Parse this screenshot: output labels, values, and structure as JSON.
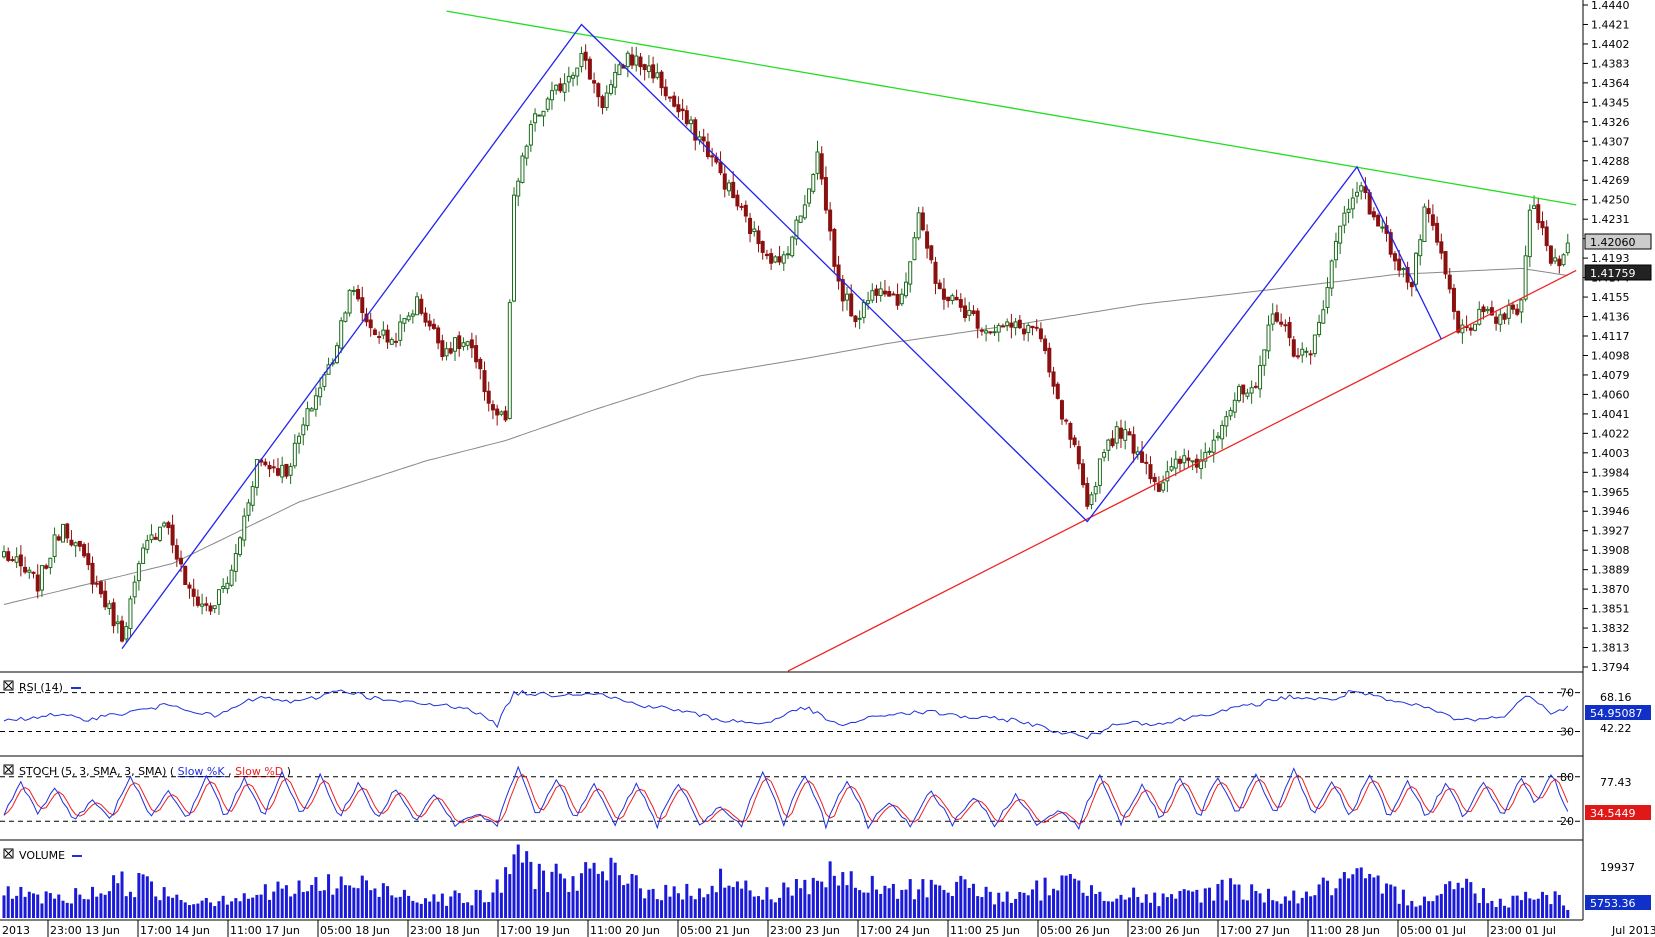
{
  "colors": {
    "background": "#ffffff",
    "candle_up": "#1d6b1d",
    "candle_down": "#8b1010",
    "zigzag": "#2222ee",
    "resistance": "#22dd22",
    "support": "#ee2222",
    "moving_average": "#888888",
    "rsi_line": "#2030dd",
    "stoch_k": "#2030dd",
    "stoch_d": "#ee2020",
    "volume_bar": "#1a1ad8",
    "price_box_fill": "#cccccc",
    "last_box_fill": "#222222",
    "rsi_box_fill": "#1030c8",
    "stoch_box_fill": "#e01818",
    "vol_box_fill": "#1030c8"
  },
  "chart_data": [
    {
      "panel": "price",
      "type": "candlestick",
      "xlabel": "",
      "ylabel": "",
      "ylim": [
        1.3794,
        1.444
      ],
      "y_tick_labels": [
        "1.4440",
        "1.4421",
        "1.4402",
        "1.4383",
        "1.4364",
        "1.4345",
        "1.4326",
        "1.4307",
        "1.4288",
        "1.4269",
        "1.4250",
        "1.4231",
        "1.4212",
        "1.4193",
        "1.4174",
        "1.4155",
        "1.4136",
        "1.4117",
        "1.4098",
        "1.4079",
        "1.4060",
        "1.4041",
        "1.4022",
        "1.4003",
        "1.3984",
        "1.3965",
        "1.3946",
        "1.3927",
        "1.3908",
        "1.3889",
        "1.3870",
        "1.3851",
        "1.3832",
        "1.3813",
        "1.3794"
      ],
      "current_price_label": "1.42060",
      "moving_average_label": "1.41759",
      "current_price": 1.4206,
      "moving_average_value": 1.41759,
      "x_tick_labels": [
        "2013",
        "23:00 13 Jun",
        "17:00 14 Jun",
        "11:00 17 Jun",
        "05:00 18 Jun",
        "23:00 18 Jun",
        "17:00 19 Jun",
        "11:00 20 Jun",
        "05:00 21 Jun",
        "23:00 23 Jun",
        "17:00 24 Jun",
        "11:00 25 Jun",
        "05:00 26 Jun",
        "23:00 26 Jun",
        "17:00 27 Jun",
        "11:00 28 Jun",
        "05:00 01 Jul",
        "23:00 01 Jul",
        "Jul 2013"
      ],
      "zigzag_points": [
        {
          "candle": 0,
          "price": 1.3812
        },
        {
          "candle": 1,
          "price": 1.4421
        },
        {
          "candle": 2,
          "price": 1.3936
        },
        {
          "candle": 3,
          "price": 1.4282
        },
        {
          "candle": 4,
          "price": 1.4114
        }
      ],
      "zigzag_candle_index": [
        28,
        137,
        257,
        321,
        341
      ],
      "resistance_line": {
        "start": {
          "candle": 105,
          "price": 1.4434
        },
        "end": {
          "candle": 373,
          "price": 1.4245
        }
      },
      "support_line": {
        "start": {
          "candle": 186,
          "price": 1.379
        },
        "end": {
          "candle": 373,
          "price": 1.4181
        }
      },
      "ohlc_anchors": [
        {
          "candle": 0,
          "price": 1.3905
        },
        {
          "candle": 8,
          "price": 1.3875
        },
        {
          "candle": 14,
          "price": 1.3935
        },
        {
          "candle": 20,
          "price": 1.389
        },
        {
          "candle": 28,
          "price": 1.3825
        },
        {
          "candle": 33,
          "price": 1.3905
        },
        {
          "candle": 38,
          "price": 1.394
        },
        {
          "candle": 44,
          "price": 1.3865
        },
        {
          "candle": 49,
          "price": 1.385
        },
        {
          "candle": 54,
          "price": 1.3885
        },
        {
          "candle": 60,
          "price": 1.3995
        },
        {
          "candle": 67,
          "price": 1.3985
        },
        {
          "candle": 73,
          "price": 1.405
        },
        {
          "candle": 78,
          "price": 1.4095
        },
        {
          "candle": 82,
          "price": 1.4165
        },
        {
          "candle": 87,
          "price": 1.4125
        },
        {
          "candle": 92,
          "price": 1.4112
        },
        {
          "candle": 98,
          "price": 1.415
        },
        {
          "candle": 104,
          "price": 1.4105
        },
        {
          "candle": 110,
          "price": 1.411
        },
        {
          "candle": 116,
          "price": 1.4045
        },
        {
          "candle": 119,
          "price": 1.4035
        },
        {
          "candle": 121,
          "price": 1.425
        },
        {
          "candle": 125,
          "price": 1.4322
        },
        {
          "candle": 130,
          "price": 1.435
        },
        {
          "candle": 137,
          "price": 1.439
        },
        {
          "candle": 142,
          "price": 1.4345
        },
        {
          "candle": 148,
          "price": 1.439
        },
        {
          "candle": 154,
          "price": 1.4375
        },
        {
          "candle": 160,
          "price": 1.4335
        },
        {
          "candle": 166,
          "price": 1.4305
        },
        {
          "candle": 172,
          "price": 1.426
        },
        {
          "candle": 178,
          "price": 1.4215
        },
        {
          "candle": 184,
          "price": 1.4185
        },
        {
          "candle": 189,
          "price": 1.4235
        },
        {
          "candle": 193,
          "price": 1.4295
        },
        {
          "candle": 198,
          "price": 1.4165
        },
        {
          "candle": 202,
          "price": 1.4135
        },
        {
          "candle": 208,
          "price": 1.417
        },
        {
          "candle": 213,
          "price": 1.415
        },
        {
          "candle": 217,
          "price": 1.424
        },
        {
          "candle": 221,
          "price": 1.4165
        },
        {
          "candle": 227,
          "price": 1.4145
        },
        {
          "candle": 233,
          "price": 1.4125
        },
        {
          "candle": 240,
          "price": 1.4125
        },
        {
          "candle": 245,
          "price": 1.4125
        },
        {
          "candle": 250,
          "price": 1.405
        },
        {
          "candle": 254,
          "price": 1.4005
        },
        {
          "candle": 257,
          "price": 1.3945
        },
        {
          "candle": 261,
          "price": 1.401
        },
        {
          "candle": 265,
          "price": 1.4025
        },
        {
          "candle": 270,
          "price": 1.4
        },
        {
          "candle": 274,
          "price": 1.397
        },
        {
          "candle": 279,
          "price": 1.3995
        },
        {
          "candle": 284,
          "price": 1.3995
        },
        {
          "candle": 289,
          "price": 1.4035
        },
        {
          "candle": 293,
          "price": 1.406
        },
        {
          "candle": 297,
          "price": 1.406
        },
        {
          "candle": 301,
          "price": 1.4145
        },
        {
          "candle": 306,
          "price": 1.4105
        },
        {
          "candle": 310,
          "price": 1.4095
        },
        {
          "candle": 313,
          "price": 1.415
        },
        {
          "candle": 317,
          "price": 1.4225
        },
        {
          "candle": 321,
          "price": 1.4265
        },
        {
          "candle": 325,
          "price": 1.4235
        },
        {
          "candle": 330,
          "price": 1.4195
        },
        {
          "candle": 334,
          "price": 1.4165
        },
        {
          "candle": 337,
          "price": 1.424
        },
        {
          "candle": 341,
          "price": 1.4195
        },
        {
          "candle": 345,
          "price": 1.412
        },
        {
          "candle": 350,
          "price": 1.4135
        },
        {
          "candle": 355,
          "price": 1.4135
        },
        {
          "candle": 360,
          "price": 1.4145
        },
        {
          "candle": 362,
          "price": 1.4245
        },
        {
          "candle": 365,
          "price": 1.423
        },
        {
          "candle": 367,
          "price": 1.4185
        },
        {
          "candle": 370,
          "price": 1.4195
        },
        {
          "candle": 371,
          "price": 1.4206
        }
      ],
      "ma_points": [
        {
          "candle": 0,
          "price": 1.3855
        },
        {
          "candle": 40,
          "price": 1.3895
        },
        {
          "candle": 70,
          "price": 1.3955
        },
        {
          "candle": 100,
          "price": 1.3995
        },
        {
          "candle": 119,
          "price": 1.4015
        },
        {
          "candle": 140,
          "price": 1.4045
        },
        {
          "candle": 165,
          "price": 1.4078
        },
        {
          "candle": 190,
          "price": 1.4095
        },
        {
          "candle": 210,
          "price": 1.411
        },
        {
          "candle": 240,
          "price": 1.4128
        },
        {
          "candle": 270,
          "price": 1.4148
        },
        {
          "candle": 300,
          "price": 1.4162
        },
        {
          "candle": 330,
          "price": 1.4177
        },
        {
          "candle": 360,
          "price": 1.4183
        },
        {
          "candle": 371,
          "price": 1.4176
        }
      ]
    },
    {
      "panel": "rsi",
      "type": "line",
      "title": "RSI (14)",
      "ylim": [
        10,
        85
      ],
      "level_upper": 70,
      "level_lower": 30,
      "level_upper_label": "70",
      "level_lower_label": "30",
      "right_labels": [
        "68.16",
        "42.22"
      ],
      "current_value_label": "54.95087",
      "current_value": 54.95087,
      "anchors": [
        {
          "candle": 0,
          "value": 40
        },
        {
          "candle": 10,
          "value": 47
        },
        {
          "candle": 20,
          "value": 43
        },
        {
          "candle": 30,
          "value": 50
        },
        {
          "candle": 40,
          "value": 58
        },
        {
          "candle": 50,
          "value": 45
        },
        {
          "candle": 60,
          "value": 65
        },
        {
          "candle": 70,
          "value": 60
        },
        {
          "candle": 80,
          "value": 73
        },
        {
          "candle": 90,
          "value": 62
        },
        {
          "candle": 100,
          "value": 58
        },
        {
          "candle": 110,
          "value": 55
        },
        {
          "candle": 117,
          "value": 37
        },
        {
          "candle": 121,
          "value": 70
        },
        {
          "candle": 130,
          "value": 68
        },
        {
          "candle": 140,
          "value": 70
        },
        {
          "candle": 150,
          "value": 58
        },
        {
          "candle": 160,
          "value": 52
        },
        {
          "candle": 170,
          "value": 42
        },
        {
          "candle": 180,
          "value": 38
        },
        {
          "candle": 190,
          "value": 55
        },
        {
          "candle": 198,
          "value": 36
        },
        {
          "candle": 210,
          "value": 48
        },
        {
          "candle": 220,
          "value": 50
        },
        {
          "candle": 230,
          "value": 44
        },
        {
          "candle": 240,
          "value": 42
        },
        {
          "candle": 250,
          "value": 30
        },
        {
          "candle": 257,
          "value": 24
        },
        {
          "candle": 265,
          "value": 40
        },
        {
          "candle": 275,
          "value": 38
        },
        {
          "candle": 285,
          "value": 48
        },
        {
          "candle": 295,
          "value": 56
        },
        {
          "candle": 305,
          "value": 66
        },
        {
          "candle": 315,
          "value": 62
        },
        {
          "candle": 320,
          "value": 72
        },
        {
          "candle": 328,
          "value": 62
        },
        {
          "candle": 338,
          "value": 54
        },
        {
          "candle": 345,
          "value": 42
        },
        {
          "candle": 355,
          "value": 44
        },
        {
          "candle": 362,
          "value": 68
        },
        {
          "candle": 367,
          "value": 50
        },
        {
          "candle": 371,
          "value": 54.95
        }
      ]
    },
    {
      "panel": "stochastic",
      "type": "line",
      "title": "STOCH (5, 3, SMA, 3, SMA)",
      "series_labels": [
        "Slow %K",
        "Slow %D"
      ],
      "ylim": [
        0,
        100
      ],
      "level_upper": 80,
      "level_lower": 20,
      "level_upper_label": "80",
      "level_lower_label": "20",
      "right_labels": [
        "77.43"
      ],
      "current_value_label": "34.5449",
      "current_value": 34.5449,
      "cycle_centres": [
        4,
        12,
        21,
        30,
        39,
        48,
        57,
        66,
        75,
        84,
        93,
        102,
        112,
        122,
        131,
        140,
        150,
        160,
        170,
        180,
        190,
        200,
        210,
        220,
        230,
        240,
        250,
        260,
        270,
        279,
        288,
        297,
        306,
        315,
        324,
        333,
        342,
        351,
        360,
        367
      ],
      "cycle_peaks": [
        72,
        65,
        48,
        82,
        60,
        80,
        78,
        86,
        82,
        70,
        65,
        55,
        30,
        92,
        75,
        70,
        70,
        72,
        40,
        85,
        82,
        75,
        46,
        60,
        52,
        55,
        35,
        80,
        68,
        78,
        80,
        85,
        90,
        74,
        84,
        74,
        70,
        72,
        80,
        85
      ]
    },
    {
      "panel": "volume",
      "type": "bar",
      "title": "VOLUME",
      "ylim": [
        0,
        33000
      ],
      "right_labels": [
        "19937"
      ],
      "current_value_label": "5753.36",
      "current_value": 5753.36,
      "volume_anchors": [
        {
          "candle": 0,
          "value": 11000
        },
        {
          "candle": 15,
          "value": 9000
        },
        {
          "candle": 30,
          "value": 17000
        },
        {
          "candle": 45,
          "value": 8000
        },
        {
          "candle": 60,
          "value": 11000
        },
        {
          "candle": 80,
          "value": 16000
        },
        {
          "candle": 100,
          "value": 10000
        },
        {
          "candle": 115,
          "value": 9000
        },
        {
          "candle": 121,
          "value": 25000
        },
        {
          "candle": 135,
          "value": 17000
        },
        {
          "candle": 142,
          "value": 21000
        },
        {
          "candle": 160,
          "value": 10000
        },
        {
          "candle": 170,
          "value": 18000
        },
        {
          "candle": 180,
          "value": 10000
        },
        {
          "candle": 195,
          "value": 19000
        },
        {
          "candle": 210,
          "value": 12000
        },
        {
          "candle": 225,
          "value": 16000
        },
        {
          "candle": 240,
          "value": 8000
        },
        {
          "candle": 250,
          "value": 17000
        },
        {
          "candle": 260,
          "value": 13000
        },
        {
          "candle": 275,
          "value": 8000
        },
        {
          "candle": 290,
          "value": 14000
        },
        {
          "candle": 305,
          "value": 9000
        },
        {
          "candle": 320,
          "value": 18000
        },
        {
          "candle": 335,
          "value": 8000
        },
        {
          "candle": 345,
          "value": 16000
        },
        {
          "candle": 355,
          "value": 7000
        },
        {
          "candle": 365,
          "value": 13000
        },
        {
          "candle": 371,
          "value": 5753
        }
      ]
    }
  ]
}
